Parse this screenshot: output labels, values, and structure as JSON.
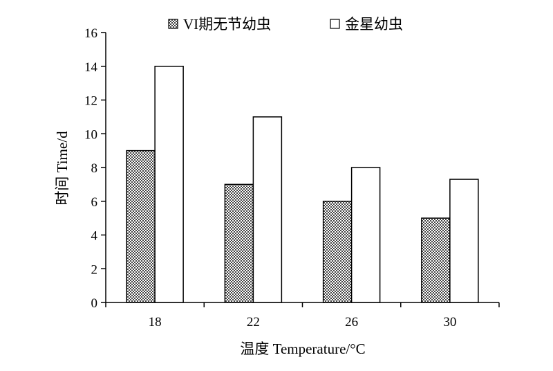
{
  "chart_data": {
    "type": "bar",
    "categories": [
      "18",
      "22",
      "26",
      "30"
    ],
    "series": [
      {
        "name": "VI期无节幼虫",
        "values": [
          9,
          7,
          6,
          5
        ],
        "pattern": "checker"
      },
      {
        "name": "金星幼虫",
        "values": [
          14,
          11,
          8,
          7.3
        ],
        "pattern": "white"
      }
    ],
    "xlabel": "温度 Temperature/°C",
    "ylabel": "时间 Time/d",
    "ylim": [
      0,
      16
    ],
    "yticks": [
      0,
      2,
      4,
      6,
      8,
      10,
      12,
      14,
      16
    ],
    "grid": false,
    "legend_position": "top"
  }
}
